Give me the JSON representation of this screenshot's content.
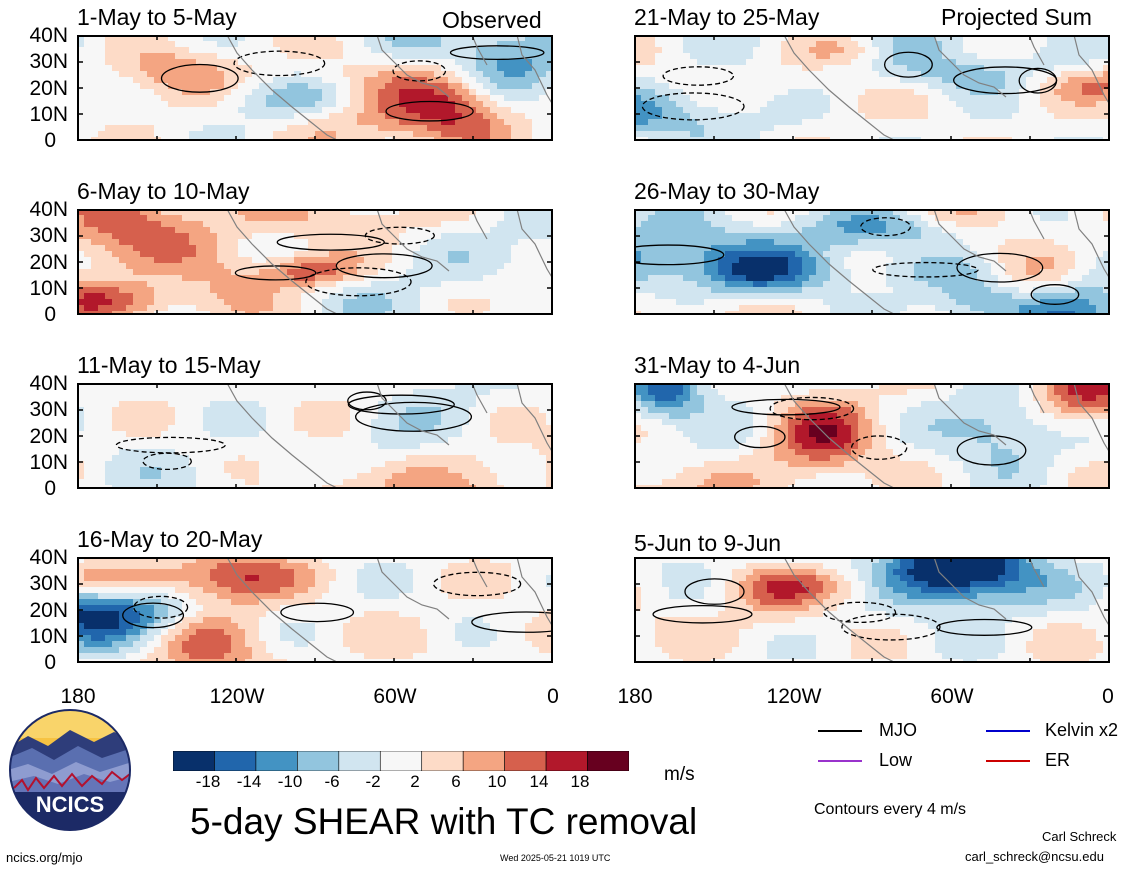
{
  "header": {
    "left_tag": "Observed",
    "right_tag": "Projected Sum"
  },
  "panels": [
    {
      "title": "1-May to 5-May",
      "seed": 11
    },
    {
      "title": "6-May to 10-May",
      "seed": 23
    },
    {
      "title": "11-May to 15-May",
      "seed": 37
    },
    {
      "title": "16-May to 20-May",
      "seed": 41
    },
    {
      "title": "21-May to 25-May",
      "seed": 53
    },
    {
      "title": "26-May to 30-May",
      "seed": 67
    },
    {
      "title": "31-May to 4-Jun",
      "seed": 71
    },
    {
      "title": "5-Jun to 9-Jun",
      "seed": 83
    }
  ],
  "lat_ticks": [
    "40N",
    "30N",
    "20N",
    "10N",
    "0"
  ],
  "lon_ticks": [
    "180",
    "120W",
    "60W",
    "0"
  ],
  "colorbar": {
    "labels": [
      "-18",
      "-14",
      "-10",
      "-6",
      "-2",
      "2",
      "6",
      "10",
      "14",
      "18"
    ],
    "colors": [
      "#08306b",
      "#2166ac",
      "#4393c3",
      "#92c5de",
      "#d1e5f0",
      "#f7f7f7",
      "#fddbc7",
      "#f4a582",
      "#d6604d",
      "#b2182b",
      "#67001f"
    ],
    "unit": "m/s"
  },
  "title": "5-day SHEAR with TC removal",
  "legend": {
    "items": [
      {
        "label": "MJO",
        "color": "#000000"
      },
      {
        "label": "Kelvin x2",
        "color": "#0000cc"
      },
      {
        "label": "Low",
        "color": "#9933cc"
      },
      {
        "label": "ER",
        "color": "#cc0000"
      }
    ],
    "note": "Contours every 4 m/s"
  },
  "logo": {
    "text": "NCICS"
  },
  "footer": {
    "url": "ncics.org/mjo",
    "timestamp": "Wed 2025-05-21 1019 UTC",
    "author": "Carl Schreck",
    "email": "carl_schreck@ncsu.edu"
  }
}
